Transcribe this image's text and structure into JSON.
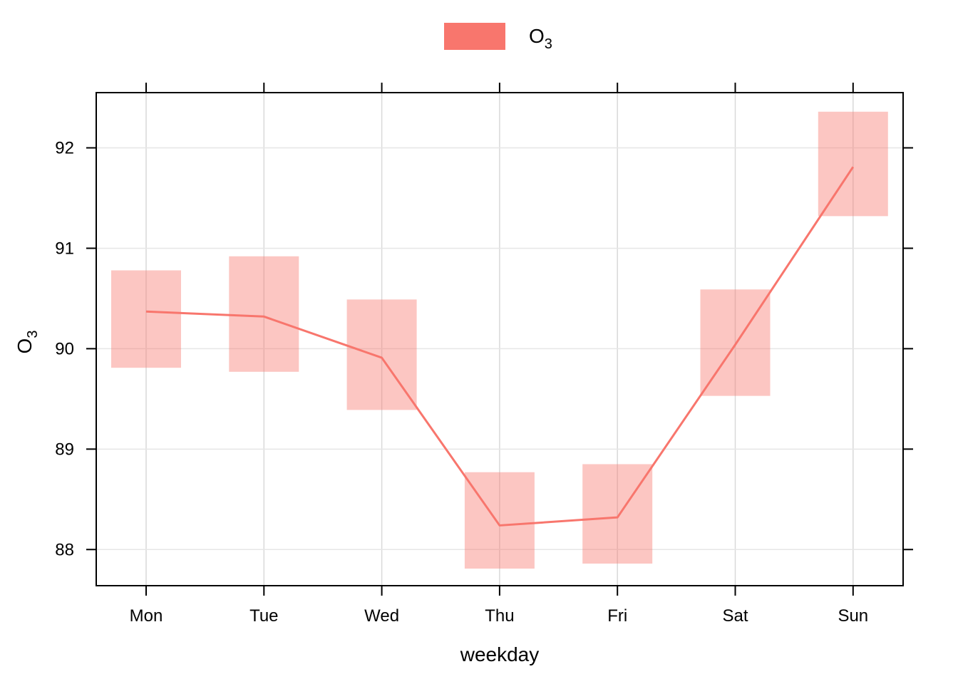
{
  "chart_data": {
    "type": "line",
    "xlabel": "weekday",
    "ylabel": {
      "base": "O",
      "sub": "3"
    },
    "legend": {
      "placement": "top-center",
      "entries": [
        {
          "base": "O",
          "sub": "3",
          "color": "#F8766D"
        }
      ]
    },
    "categories": [
      "Mon",
      "Tue",
      "Wed",
      "Thu",
      "Fri",
      "Sat",
      "Sun"
    ],
    "ylim": [
      87.64,
      92.55
    ],
    "yticks": [
      88,
      89,
      90,
      91,
      92
    ],
    "grid": true,
    "series": [
      {
        "color": "#F8766D",
        "band_color": "#F8766D",
        "band_opacity": 0.42,
        "mean": [
          90.37,
          90.32,
          89.91,
          88.24,
          88.32,
          90.04,
          91.81
        ],
        "lower": [
          89.81,
          89.77,
          89.39,
          87.81,
          87.86,
          89.53,
          91.32
        ],
        "upper": [
          90.78,
          90.92,
          90.49,
          88.77,
          88.85,
          90.59,
          92.36
        ]
      }
    ]
  }
}
